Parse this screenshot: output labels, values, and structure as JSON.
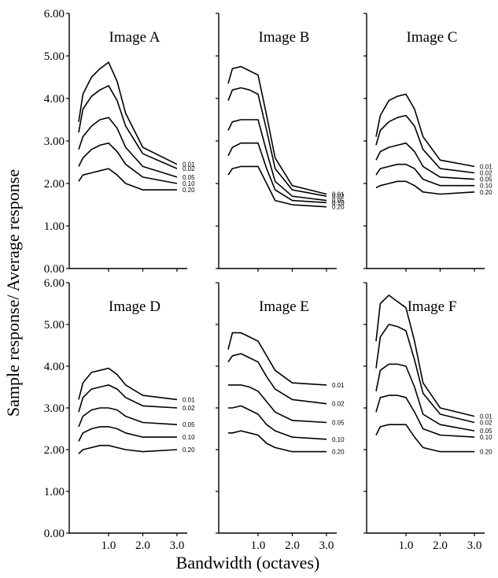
{
  "chart_data": {
    "type": "line",
    "ylabel": "Sample response/ Average response",
    "xlabel": "Bandwidth (octaves)",
    "x": [
      0.125,
      0.25,
      0.5,
      0.75,
      1.0,
      1.25,
      1.5,
      2.0,
      3.0
    ],
    "xlim": [
      -0.15,
      3.3
    ],
    "ylim": [
      0,
      6
    ],
    "y_ticks": [
      "0.00",
      "1.00",
      "2.00",
      "3.00",
      "4.00",
      "5.00",
      "6.00"
    ],
    "x_ticks": [
      "1.0",
      "2.0",
      "3.0"
    ],
    "panels": [
      {
        "title": "Image A",
        "series": [
          {
            "name": "0.01",
            "values": [
              3.45,
              4.1,
              4.5,
              4.7,
              4.85,
              4.4,
              3.65,
              2.85,
              2.45
            ]
          },
          {
            "name": "0.02",
            "values": [
              3.2,
              3.75,
              4.05,
              4.2,
              4.3,
              3.95,
              3.35,
              2.7,
              2.35
            ]
          },
          {
            "name": "0.05",
            "values": [
              2.8,
              3.1,
              3.35,
              3.5,
              3.55,
              3.3,
              2.85,
              2.4,
              2.15
            ]
          },
          {
            "name": "0.10",
            "values": [
              2.4,
              2.6,
              2.8,
              2.9,
              2.95,
              2.75,
              2.45,
              2.15,
              2.0
            ]
          },
          {
            "name": "0.20",
            "values": [
              2.05,
              2.2,
              2.25,
              2.3,
              2.35,
              2.2,
              2.0,
              1.85,
              1.85
            ]
          }
        ]
      },
      {
        "title": "Image B",
        "series": [
          {
            "name": "0.01",
            "values": [
              4.35,
              4.7,
              4.75,
              4.65,
              4.55,
              3.6,
              2.6,
              1.95,
              1.75
            ]
          },
          {
            "name": "0.02",
            "values": [
              3.95,
              4.2,
              4.25,
              4.2,
              4.1,
              3.25,
              2.35,
              1.85,
              1.7
            ]
          },
          {
            "name": "0.05",
            "values": [
              3.25,
              3.45,
              3.5,
              3.5,
              3.5,
              2.75,
              2.05,
              1.7,
              1.6
            ]
          },
          {
            "name": "0.10",
            "values": [
              2.65,
              2.85,
              2.95,
              2.95,
              2.95,
              2.35,
              1.85,
              1.6,
              1.55
            ]
          },
          {
            "name": "0.20",
            "values": [
              2.2,
              2.35,
              2.4,
              2.4,
              2.4,
              2.0,
              1.6,
              1.5,
              1.45
            ]
          }
        ]
      },
      {
        "title": "Image C",
        "series": [
          {
            "name": "0.01",
            "values": [
              3.1,
              3.6,
              3.95,
              4.05,
              4.1,
              3.75,
              3.1,
              2.55,
              2.4
            ]
          },
          {
            "name": "0.02",
            "values": [
              2.9,
              3.25,
              3.45,
              3.55,
              3.6,
              3.35,
              2.8,
              2.35,
              2.25
            ]
          },
          {
            "name": "0.05",
            "values": [
              2.55,
              2.75,
              2.85,
              2.9,
              2.95,
              2.75,
              2.4,
              2.15,
              2.1
            ]
          },
          {
            "name": "0.10",
            "values": [
              2.2,
              2.35,
              2.4,
              2.45,
              2.45,
              2.35,
              2.1,
              1.95,
              1.95
            ]
          },
          {
            "name": "0.20",
            "values": [
              1.9,
              1.95,
              2.0,
              2.05,
              2.05,
              1.95,
              1.8,
              1.75,
              1.8
            ]
          }
        ]
      },
      {
        "title": "Image D",
        "series": [
          {
            "name": "0.01",
            "values": [
              3.2,
              3.6,
              3.85,
              3.9,
              3.95,
              3.8,
              3.55,
              3.3,
              3.2
            ]
          },
          {
            "name": "0.02",
            "values": [
              2.9,
              3.25,
              3.45,
              3.5,
              3.55,
              3.45,
              3.25,
              3.05,
              3.0
            ]
          },
          {
            "name": "0.05",
            "values": [
              2.55,
              2.8,
              2.95,
              3.0,
              3.0,
              2.95,
              2.8,
              2.65,
              2.6
            ]
          },
          {
            "name": "0.10",
            "values": [
              2.2,
              2.4,
              2.5,
              2.55,
              2.55,
              2.5,
              2.4,
              2.3,
              2.3
            ]
          },
          {
            "name": "0.20",
            "values": [
              1.9,
              2.0,
              2.05,
              2.1,
              2.1,
              2.05,
              2.0,
              1.95,
              2.0
            ]
          }
        ]
      },
      {
        "title": "Image E",
        "series": [
          {
            "name": "0.01",
            "values": [
              4.4,
              4.8,
              4.8,
              4.7,
              4.6,
              4.25,
              3.9,
              3.6,
              3.55
            ]
          },
          {
            "name": "0.02",
            "values": [
              4.1,
              4.25,
              4.3,
              4.2,
              4.1,
              3.75,
              3.45,
              3.2,
              3.1
            ]
          },
          {
            "name": "0.05",
            "values": [
              3.55,
              3.55,
              3.55,
              3.5,
              3.4,
              3.15,
              2.9,
              2.7,
              2.65
            ]
          },
          {
            "name": "0.10",
            "values": [
              3.0,
              3.0,
              3.05,
              2.95,
              2.85,
              2.6,
              2.45,
              2.3,
              2.25
            ]
          },
          {
            "name": "0.20",
            "values": [
              2.4,
              2.4,
              2.45,
              2.4,
              2.35,
              2.15,
              2.05,
              1.95,
              1.95
            ]
          }
        ]
      },
      {
        "title": "Image F",
        "series": [
          {
            "name": "0.01",
            "values": [
              4.6,
              5.5,
              5.7,
              5.55,
              5.4,
              4.6,
              3.6,
              3.0,
              2.8
            ]
          },
          {
            "name": "0.02",
            "values": [
              3.95,
              4.7,
              5.0,
              4.95,
              4.85,
              4.15,
              3.35,
              2.85,
              2.65
            ]
          },
          {
            "name": "0.05",
            "values": [
              3.4,
              3.9,
              4.05,
              4.05,
              4.0,
              3.5,
              2.85,
              2.6,
              2.45
            ]
          },
          {
            "name": "0.10",
            "values": [
              2.9,
              3.25,
              3.3,
              3.3,
              3.25,
              2.9,
              2.5,
              2.35,
              2.3
            ]
          },
          {
            "name": "0.20",
            "values": [
              2.35,
              2.55,
              2.6,
              2.6,
              2.6,
              2.3,
              2.05,
              1.95,
              1.95
            ]
          }
        ]
      }
    ],
    "grid": false,
    "legend": "inline labels at right end of each curve"
  }
}
